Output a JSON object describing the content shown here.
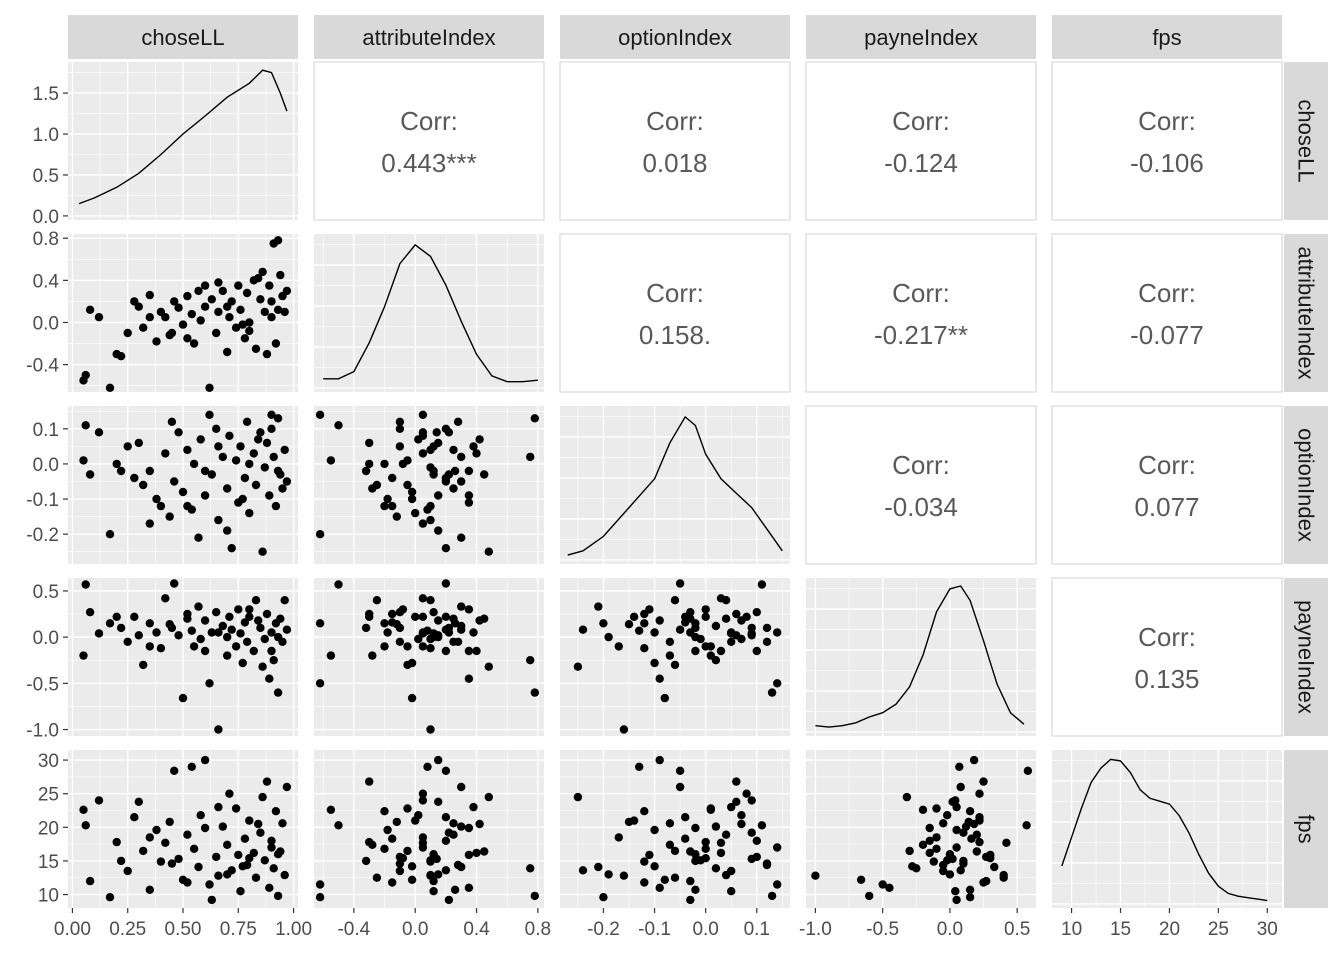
{
  "variables": [
    "choseLL",
    "attributeIndex",
    "optionIndex",
    "payneIndex",
    "fps"
  ],
  "colors": {
    "panel_bg": "#ebebeb",
    "grid_major": "#ffffff",
    "strip_bg": "#d9d9d9",
    "strip_text": "#1a1a1a",
    "axis_text": "#4d4d4d",
    "tick": "#333333",
    "corr_text": "#595959",
    "corr_border": "#d9d9d9",
    "point": "#000000",
    "line": "#000000"
  },
  "chart_data": {
    "type": "scatter",
    "subtype": "pairs-matrix",
    "corr_label": "Corr:",
    "axes": {
      "choseLL": {
        "range": [
          -0.02,
          1.02
        ],
        "ticks": [
          0.0,
          0.25,
          0.5,
          0.75,
          1.0
        ],
        "tick_labels": [
          "0.00",
          "0.25",
          "0.50",
          "0.75",
          "1.00"
        ]
      },
      "attributeIndex": {
        "range": [
          -0.66,
          0.84
        ],
        "ticks": [
          -0.4,
          0.0,
          0.4,
          0.8
        ],
        "tick_labels": [
          "-0.4",
          "0.0",
          "0.4",
          "0.8"
        ]
      },
      "optionIndex": {
        "range": [
          -0.285,
          0.165
        ],
        "ticks": [
          -0.2,
          -0.1,
          0.0,
          0.1
        ],
        "tick_labels": [
          "-0.2",
          "-0.1",
          "0.0",
          "0.1"
        ]
      },
      "payneIndex": {
        "range": [
          -1.07,
          0.64
        ],
        "ticks": [
          -1.0,
          -0.5,
          0.0,
          0.5
        ],
        "tick_labels": [
          "-1.0",
          "-0.5",
          "0.0",
          "0.5"
        ]
      },
      "fps": {
        "range": [
          8,
          31.5
        ],
        "ticks": [
          10,
          15,
          20,
          25,
          30
        ],
        "tick_labels": [
          "10",
          "15",
          "20",
          "25",
          "30"
        ]
      }
    },
    "density_axis": {
      "range": [
        -0.05,
        1.88
      ],
      "ticks": [
        0.0,
        0.5,
        1.0,
        1.5
      ],
      "tick_labels": [
        "0.0",
        "0.5",
        "1.0",
        "1.5"
      ]
    },
    "correlations": [
      {
        "row": "choseLL",
        "col": "attributeIndex",
        "value": "0.443***"
      },
      {
        "row": "choseLL",
        "col": "optionIndex",
        "value": "0.018"
      },
      {
        "row": "choseLL",
        "col": "payneIndex",
        "value": "-0.124"
      },
      {
        "row": "choseLL",
        "col": "fps",
        "value": "-0.106"
      },
      {
        "row": "attributeIndex",
        "col": "optionIndex",
        "value": "0.158."
      },
      {
        "row": "attributeIndex",
        "col": "payneIndex",
        "value": "-0.217**"
      },
      {
        "row": "attributeIndex",
        "col": "fps",
        "value": "-0.077"
      },
      {
        "row": "optionIndex",
        "col": "payneIndex",
        "value": "-0.034"
      },
      {
        "row": "optionIndex",
        "col": "fps",
        "value": "0.077"
      },
      {
        "row": "payneIndex",
        "col": "fps",
        "value": "0.135"
      }
    ],
    "densities": {
      "choseLL": [
        [
          0.03,
          0.15
        ],
        [
          0.1,
          0.22
        ],
        [
          0.2,
          0.35
        ],
        [
          0.3,
          0.52
        ],
        [
          0.4,
          0.75
        ],
        [
          0.5,
          1.0
        ],
        [
          0.6,
          1.22
        ],
        [
          0.7,
          1.45
        ],
        [
          0.8,
          1.62
        ],
        [
          0.86,
          1.78
        ],
        [
          0.9,
          1.75
        ],
        [
          0.94,
          1.5
        ],
        [
          0.97,
          1.28
        ]
      ],
      "attributeIndex": [
        [
          -0.6,
          0.05
        ],
        [
          -0.5,
          0.05
        ],
        [
          -0.4,
          0.1
        ],
        [
          -0.3,
          0.3
        ],
        [
          -0.2,
          0.55
        ],
        [
          -0.1,
          0.85
        ],
        [
          0.0,
          0.98
        ],
        [
          0.1,
          0.9
        ],
        [
          0.2,
          0.7
        ],
        [
          0.3,
          0.45
        ],
        [
          0.4,
          0.22
        ],
        [
          0.5,
          0.07
        ],
        [
          0.6,
          0.03
        ],
        [
          0.7,
          0.03
        ],
        [
          0.8,
          0.04
        ]
      ],
      "optionIndex": [
        [
          -0.27,
          0.02
        ],
        [
          -0.24,
          0.05
        ],
        [
          -0.2,
          0.15
        ],
        [
          -0.15,
          0.35
        ],
        [
          -0.1,
          0.55
        ],
        [
          -0.07,
          0.8
        ],
        [
          -0.04,
          0.98
        ],
        [
          -0.02,
          0.92
        ],
        [
          0.0,
          0.72
        ],
        [
          0.03,
          0.55
        ],
        [
          0.06,
          0.45
        ],
        [
          0.09,
          0.35
        ],
        [
          0.12,
          0.2
        ],
        [
          0.15,
          0.05
        ]
      ],
      "payneIndex": [
        [
          -1.0,
          0.03
        ],
        [
          -0.9,
          0.02
        ],
        [
          -0.8,
          0.03
        ],
        [
          -0.7,
          0.05
        ],
        [
          -0.6,
          0.09
        ],
        [
          -0.5,
          0.12
        ],
        [
          -0.4,
          0.18
        ],
        [
          -0.3,
          0.3
        ],
        [
          -0.2,
          0.52
        ],
        [
          -0.1,
          0.82
        ],
        [
          0.0,
          0.98
        ],
        [
          0.08,
          1.0
        ],
        [
          0.15,
          0.9
        ],
        [
          0.25,
          0.62
        ],
        [
          0.35,
          0.32
        ],
        [
          0.45,
          0.12
        ],
        [
          0.55,
          0.04
        ]
      ],
      "fps": [
        [
          9,
          0.25
        ],
        [
          10,
          0.45
        ],
        [
          11,
          0.65
        ],
        [
          12,
          0.83
        ],
        [
          13,
          0.93
        ],
        [
          14,
          0.99
        ],
        [
          15,
          0.98
        ],
        [
          16,
          0.9
        ],
        [
          17,
          0.78
        ],
        [
          18,
          0.72
        ],
        [
          19,
          0.7
        ],
        [
          20,
          0.68
        ],
        [
          21,
          0.6
        ],
        [
          22,
          0.48
        ],
        [
          23,
          0.33
        ],
        [
          24,
          0.2
        ],
        [
          25,
          0.11
        ],
        [
          26,
          0.06
        ],
        [
          27,
          0.04
        ],
        [
          28,
          0.03
        ],
        [
          29,
          0.02
        ],
        [
          30,
          0.01
        ]
      ]
    },
    "observations": [
      {
        "choseLL": 0.05,
        "attributeIndex": -0.55,
        "optionIndex": 0.01,
        "payneIndex": -0.2,
        "fps": 22.6
      },
      {
        "choseLL": 0.06,
        "attributeIndex": -0.5,
        "optionIndex": 0.11,
        "payneIndex": 0.57,
        "fps": 20.3
      },
      {
        "choseLL": 0.08,
        "attributeIndex": 0.12,
        "optionIndex": -0.03,
        "payneIndex": 0.27,
        "fps": 12.0
      },
      {
        "choseLL": 0.12,
        "attributeIndex": 0.05,
        "optionIndex": 0.09,
        "payneIndex": 0.04,
        "fps": 24.0
      },
      {
        "choseLL": 0.17,
        "attributeIndex": -0.62,
        "optionIndex": -0.2,
        "payneIndex": 0.15,
        "fps": 9.6
      },
      {
        "choseLL": 0.2,
        "attributeIndex": -0.3,
        "optionIndex": 0.0,
        "payneIndex": 0.22,
        "fps": 17.8
      },
      {
        "choseLL": 0.22,
        "attributeIndex": -0.32,
        "optionIndex": -0.02,
        "payneIndex": 0.1,
        "fps": 15.0
      },
      {
        "choseLL": 0.25,
        "attributeIndex": -0.1,
        "optionIndex": 0.05,
        "payneIndex": -0.05,
        "fps": 13.5
      },
      {
        "choseLL": 0.28,
        "attributeIndex": 0.2,
        "optionIndex": -0.04,
        "payneIndex": 0.22,
        "fps": 21.5
      },
      {
        "choseLL": 0.3,
        "attributeIndex": 0.15,
        "optionIndex": 0.06,
        "payneIndex": 0.02,
        "fps": 23.8
      },
      {
        "choseLL": 0.32,
        "attributeIndex": -0.05,
        "optionIndex": -0.06,
        "payneIndex": -0.3,
        "fps": 16.5
      },
      {
        "choseLL": 0.35,
        "attributeIndex": 0.26,
        "optionIndex": -0.02,
        "payneIndex": 0.15,
        "fps": 10.7
      },
      {
        "choseLL": 0.38,
        "attributeIndex": -0.18,
        "optionIndex": -0.1,
        "payneIndex": 0.05,
        "fps": 19.6
      },
      {
        "choseLL": 0.4,
        "attributeIndex": 0.1,
        "optionIndex": -0.12,
        "payneIndex": -0.12,
        "fps": 14.9
      },
      {
        "choseLL": 0.42,
        "attributeIndex": 0.05,
        "optionIndex": 0.03,
        "payneIndex": 0.42,
        "fps": 17.7
      },
      {
        "choseLL": 0.44,
        "attributeIndex": -0.12,
        "optionIndex": -0.15,
        "payneIndex": 0.14,
        "fps": 20.8
      },
      {
        "choseLL": 0.46,
        "attributeIndex": 0.2,
        "optionIndex": -0.05,
        "payneIndex": 0.58,
        "fps": 28.4
      },
      {
        "choseLL": 0.48,
        "attributeIndex": 0.14,
        "optionIndex": 0.09,
        "payneIndex": 0.02,
        "fps": 15.3
      },
      {
        "choseLL": 0.5,
        "attributeIndex": -0.02,
        "optionIndex": -0.08,
        "payneIndex": -0.66,
        "fps": 12.2
      },
      {
        "choseLL": 0.52,
        "attributeIndex": 0.25,
        "optionIndex": 0.04,
        "payneIndex": 0.2,
        "fps": 18.9
      },
      {
        "choseLL": 0.54,
        "attributeIndex": 0.08,
        "optionIndex": -0.13,
        "payneIndex": 0.07,
        "fps": 29.0
      },
      {
        "choseLL": 0.55,
        "attributeIndex": -0.2,
        "optionIndex": 0.0,
        "payneIndex": -0.1,
        "fps": 16.8
      },
      {
        "choseLL": 0.57,
        "attributeIndex": 0.3,
        "optionIndex": -0.21,
        "payneIndex": 0.33,
        "fps": 14.1
      },
      {
        "choseLL": 0.58,
        "attributeIndex": 0.02,
        "optionIndex": 0.07,
        "payneIndex": -0.02,
        "fps": 21.8
      },
      {
        "choseLL": 0.6,
        "attributeIndex": 0.15,
        "optionIndex": -0.09,
        "payneIndex": 0.18,
        "fps": 30.0
      },
      {
        "choseLL": 0.62,
        "attributeIndex": -0.62,
        "optionIndex": 0.14,
        "payneIndex": -0.5,
        "fps": 11.5
      },
      {
        "choseLL": 0.63,
        "attributeIndex": 0.22,
        "optionIndex": -0.03,
        "payneIndex": 0.05,
        "fps": 9.2
      },
      {
        "choseLL": 0.65,
        "attributeIndex": -0.1,
        "optionIndex": 0.1,
        "payneIndex": 0.27,
        "fps": 15.6
      },
      {
        "choseLL": 0.66,
        "attributeIndex": 0.1,
        "optionIndex": -0.16,
        "payneIndex": -1.0,
        "fps": 12.8
      },
      {
        "choseLL": 0.68,
        "attributeIndex": 0.3,
        "optionIndex": 0.02,
        "payneIndex": 0.12,
        "fps": 20.1
      },
      {
        "choseLL": 0.7,
        "attributeIndex": -0.28,
        "optionIndex": -0.07,
        "payneIndex": -0.2,
        "fps": 17.4
      },
      {
        "choseLL": 0.71,
        "attributeIndex": 0.05,
        "optionIndex": 0.08,
        "payneIndex": 0.22,
        "fps": 25.0
      },
      {
        "choseLL": 0.72,
        "attributeIndex": 0.2,
        "optionIndex": -0.24,
        "payneIndex": 0.08,
        "fps": 13.6
      },
      {
        "choseLL": 0.74,
        "attributeIndex": -0.05,
        "optionIndex": 0.01,
        "payneIndex": -0.1,
        "fps": 22.8
      },
      {
        "choseLL": 0.75,
        "attributeIndex": 0.35,
        "optionIndex": -0.11,
        "payneIndex": 0.3,
        "fps": 15.9
      },
      {
        "choseLL": 0.76,
        "attributeIndex": 0.12,
        "optionIndex": 0.05,
        "payneIndex": 0.04,
        "fps": 10.5
      },
      {
        "choseLL": 0.78,
        "attributeIndex": -0.15,
        "optionIndex": -0.04,
        "payneIndex": 0.16,
        "fps": 18.3
      },
      {
        "choseLL": 0.79,
        "attributeIndex": 0.28,
        "optionIndex": 0.12,
        "payneIndex": -0.05,
        "fps": 14.4
      },
      {
        "choseLL": 0.8,
        "attributeIndex": 0.0,
        "optionIndex": -0.14,
        "payneIndex": 0.22,
        "fps": 21.0
      },
      {
        "choseLL": 0.82,
        "attributeIndex": 0.4,
        "optionIndex": 0.03,
        "payneIndex": -0.15,
        "fps": 16.2
      },
      {
        "choseLL": 0.83,
        "attributeIndex": -0.25,
        "optionIndex": -0.06,
        "payneIndex": 0.4,
        "fps": 12.5
      },
      {
        "choseLL": 0.85,
        "attributeIndex": 0.22,
        "optionIndex": 0.09,
        "payneIndex": 0.1,
        "fps": 19.2
      },
      {
        "choseLL": 0.86,
        "attributeIndex": 0.48,
        "optionIndex": -0.25,
        "payneIndex": -0.32,
        "fps": 24.5
      },
      {
        "choseLL": 0.87,
        "attributeIndex": 0.1,
        "optionIndex": -0.01,
        "payneIndex": -0.02,
        "fps": 15.1
      },
      {
        "choseLL": 0.88,
        "attributeIndex": -0.3,
        "optionIndex": 0.06,
        "payneIndex": 0.25,
        "fps": 26.8
      },
      {
        "choseLL": 0.89,
        "attributeIndex": 0.35,
        "optionIndex": -0.09,
        "payneIndex": -0.45,
        "fps": 11.0
      },
      {
        "choseLL": 0.9,
        "attributeIndex": 0.05,
        "optionIndex": 0.14,
        "payneIndex": 0.05,
        "fps": 17.0
      },
      {
        "choseLL": 0.91,
        "attributeIndex": 0.75,
        "optionIndex": 0.02,
        "payneIndex": -0.25,
        "fps": 13.9
      },
      {
        "choseLL": 0.92,
        "attributeIndex": -0.2,
        "optionIndex": -0.12,
        "payneIndex": 0.15,
        "fps": 22.4
      },
      {
        "choseLL": 0.93,
        "attributeIndex": 0.78,
        "optionIndex": 0.13,
        "payneIndex": -0.6,
        "fps": 9.8
      },
      {
        "choseLL": 0.94,
        "attributeIndex": 0.45,
        "optionIndex": -0.03,
        "payneIndex": 0.2,
        "fps": 16.4
      },
      {
        "choseLL": 0.95,
        "attributeIndex": 0.25,
        "optionIndex": -0.07,
        "payneIndex": -0.05,
        "fps": 20.6
      },
      {
        "choseLL": 0.96,
        "attributeIndex": 0.1,
        "optionIndex": 0.04,
        "payneIndex": 0.4,
        "fps": 12.9
      },
      {
        "choseLL": 0.97,
        "attributeIndex": 0.3,
        "optionIndex": -0.05,
        "payneIndex": 0.08,
        "fps": 26.0
      },
      {
        "choseLL": 0.35,
        "attributeIndex": 0.05,
        "optionIndex": -0.17,
        "payneIndex": -0.1,
        "fps": 18.5
      },
      {
        "choseLL": 0.45,
        "attributeIndex": -0.1,
        "optionIndex": 0.12,
        "payneIndex": 0.1,
        "fps": 14.6
      },
      {
        "choseLL": 0.6,
        "attributeIndex": 0.35,
        "optionIndex": -0.02,
        "payneIndex": -0.15,
        "fps": 19.9
      },
      {
        "choseLL": 0.7,
        "attributeIndex": 0.15,
        "optionIndex": -0.19,
        "payneIndex": 0.0,
        "fps": 13.0
      },
      {
        "choseLL": 0.8,
        "attributeIndex": -0.08,
        "optionIndex": 0.0,
        "payneIndex": 0.3,
        "fps": 15.4
      },
      {
        "choseLL": 0.9,
        "attributeIndex": 0.2,
        "optionIndex": 0.1,
        "payneIndex": -0.15,
        "fps": 18.0
      },
      {
        "choseLL": 0.52,
        "attributeIndex": -0.15,
        "optionIndex": -0.12,
        "payneIndex": 0.25,
        "fps": 11.8
      },
      {
        "choseLL": 0.66,
        "attributeIndex": 0.38,
        "optionIndex": 0.05,
        "payneIndex": 0.05,
        "fps": 23.0
      },
      {
        "choseLL": 0.77,
        "attributeIndex": -0.02,
        "optionIndex": -0.1,
        "payneIndex": -0.28,
        "fps": 14.2
      },
      {
        "choseLL": 0.84,
        "attributeIndex": 0.42,
        "optionIndex": 0.07,
        "payneIndex": 0.18,
        "fps": 20.5
      },
      {
        "choseLL": 0.93,
        "attributeIndex": 0.12,
        "optionIndex": -0.02,
        "payneIndex": 0.0,
        "fps": 16.0
      }
    ]
  }
}
